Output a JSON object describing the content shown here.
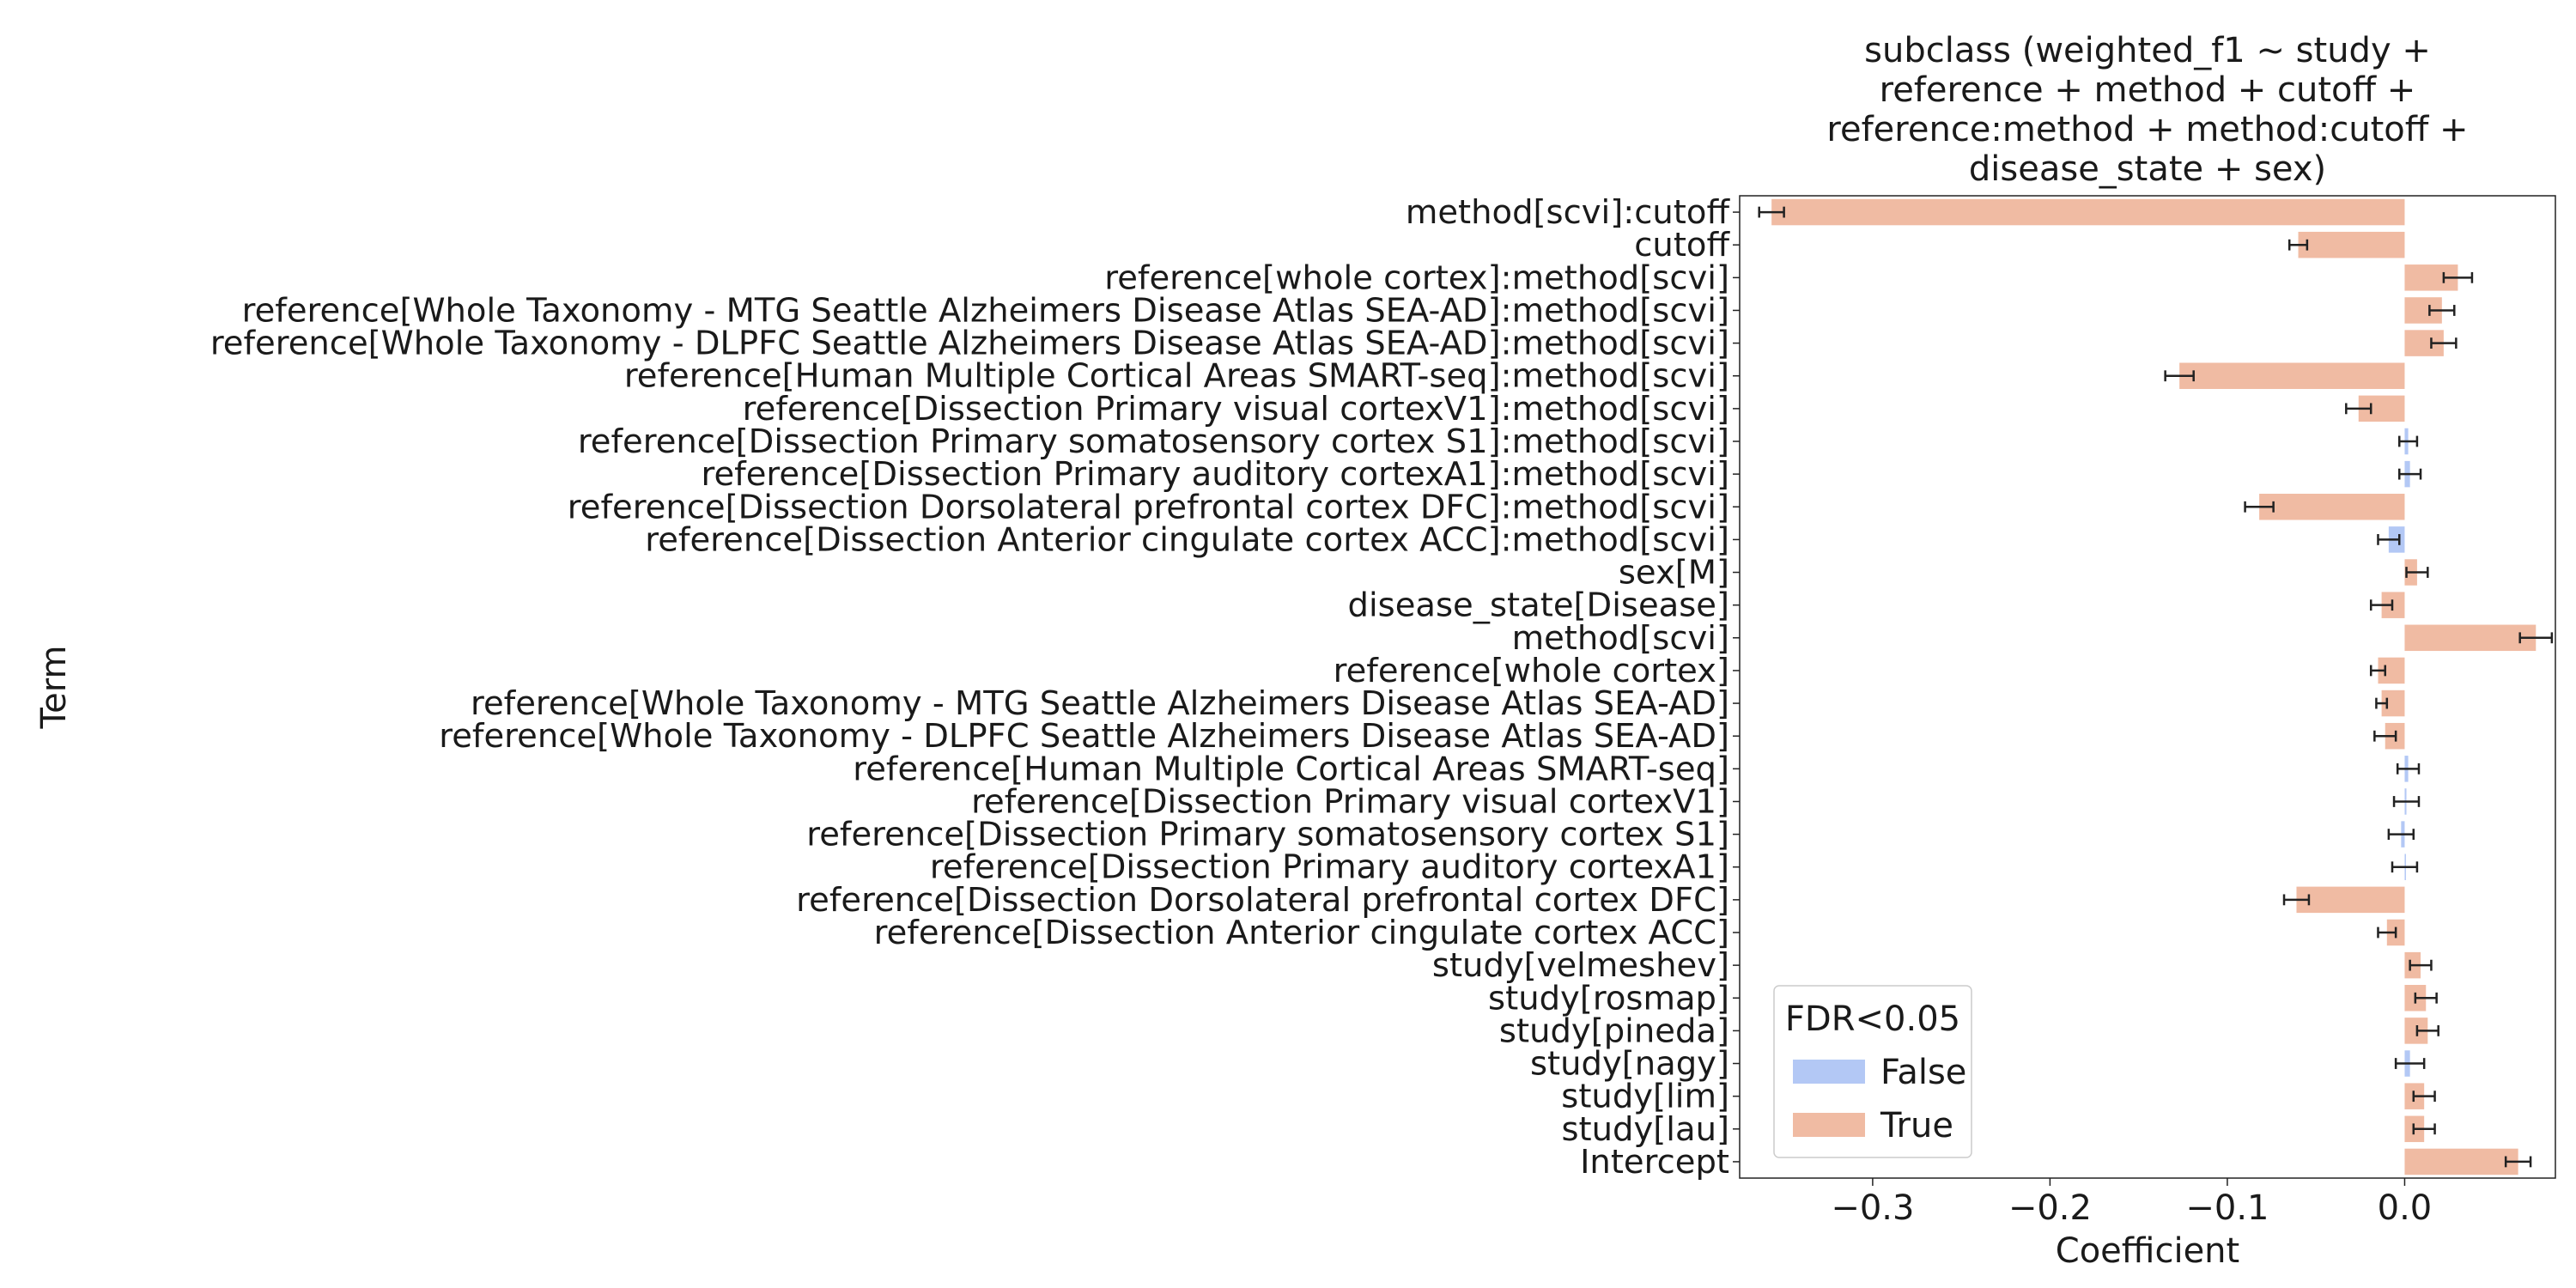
{
  "chart_data": {
    "type": "bar",
    "orientation": "horizontal",
    "title": "subclass (weighted_f1 ~ study +\nreference + method + cutoff +\nreference:method + method:cutoff +\ndisease_state + sex)",
    "xlabel": "Coefficient",
    "ylabel": "Term",
    "xlim": [
      -0.375,
      0.085
    ],
    "xticks": [
      -0.3,
      -0.2,
      -0.1,
      0.0
    ],
    "xtick_labels": [
      "−0.3",
      "−0.2",
      "−0.1",
      "0.0"
    ],
    "grid": false,
    "legend": {
      "title": "FDR<0.05",
      "placement": "lower-left",
      "entries": [
        {
          "label": "False",
          "color": "#b3c8f5"
        },
        {
          "label": "True",
          "color": "#f0bba3"
        }
      ]
    },
    "categories": [
      "method[scvi]:cutoff",
      "cutoff",
      "reference[whole cortex]:method[scvi]",
      "reference[Whole Taxonomy - MTG Seattle Alzheimers Disease Atlas SEA-AD]:method[scvi]",
      "reference[Whole Taxonomy - DLPFC Seattle Alzheimers Disease Atlas SEA-AD]:method[scvi]",
      "reference[Human Multiple Cortical Areas SMART-seq]:method[scvi]",
      "reference[Dissection Primary visual cortexV1]:method[scvi]",
      "reference[Dissection Primary somatosensory cortex S1]:method[scvi]",
      "reference[Dissection Primary auditory cortexA1]:method[scvi]",
      "reference[Dissection Dorsolateral prefrontal cortex DFC]:method[scvi]",
      "reference[Dissection Anterior cingulate cortex ACC]:method[scvi]",
      "sex[M]",
      "disease_state[Disease]",
      "method[scvi]",
      "reference[whole cortex]",
      "reference[Whole Taxonomy - MTG Seattle Alzheimers Disease Atlas SEA-AD]",
      "reference[Whole Taxonomy - DLPFC Seattle Alzheimers Disease Atlas SEA-AD]",
      "reference[Human Multiple Cortical Areas SMART-seq]",
      "reference[Dissection Primary visual cortexV1]",
      "reference[Dissection Primary somatosensory cortex S1]",
      "reference[Dissection Primary auditory cortexA1]",
      "reference[Dissection Dorsolateral prefrontal cortex DFC]",
      "reference[Dissection Anterior cingulate cortex ACC]",
      "study[velmeshev]",
      "study[rosmap]",
      "study[pineda]",
      "study[nagy]",
      "study[lim]",
      "study[lau]",
      "Intercept"
    ],
    "values": [
      -0.357,
      -0.06,
      0.03,
      0.021,
      0.022,
      -0.127,
      -0.026,
      0.002,
      0.003,
      -0.082,
      -0.009,
      0.007,
      -0.013,
      0.074,
      -0.015,
      -0.013,
      -0.011,
      0.002,
      0.001,
      -0.002,
      0.0,
      -0.061,
      -0.01,
      0.009,
      0.012,
      0.013,
      0.003,
      0.011,
      0.011,
      0.064
    ],
    "errors": [
      0.007,
      0.005,
      0.008,
      0.007,
      0.007,
      0.008,
      0.007,
      0.005,
      0.006,
      0.008,
      0.006,
      0.006,
      0.006,
      0.009,
      0.004,
      0.003,
      0.006,
      0.006,
      0.007,
      0.007,
      0.007,
      0.007,
      0.005,
      0.006,
      0.006,
      0.006,
      0.008,
      0.006,
      0.006,
      0.007
    ],
    "fdr_significant": [
      true,
      true,
      true,
      true,
      true,
      true,
      true,
      false,
      false,
      true,
      false,
      true,
      true,
      true,
      true,
      true,
      true,
      false,
      false,
      false,
      false,
      true,
      true,
      true,
      true,
      true,
      false,
      true,
      true,
      true
    ]
  }
}
